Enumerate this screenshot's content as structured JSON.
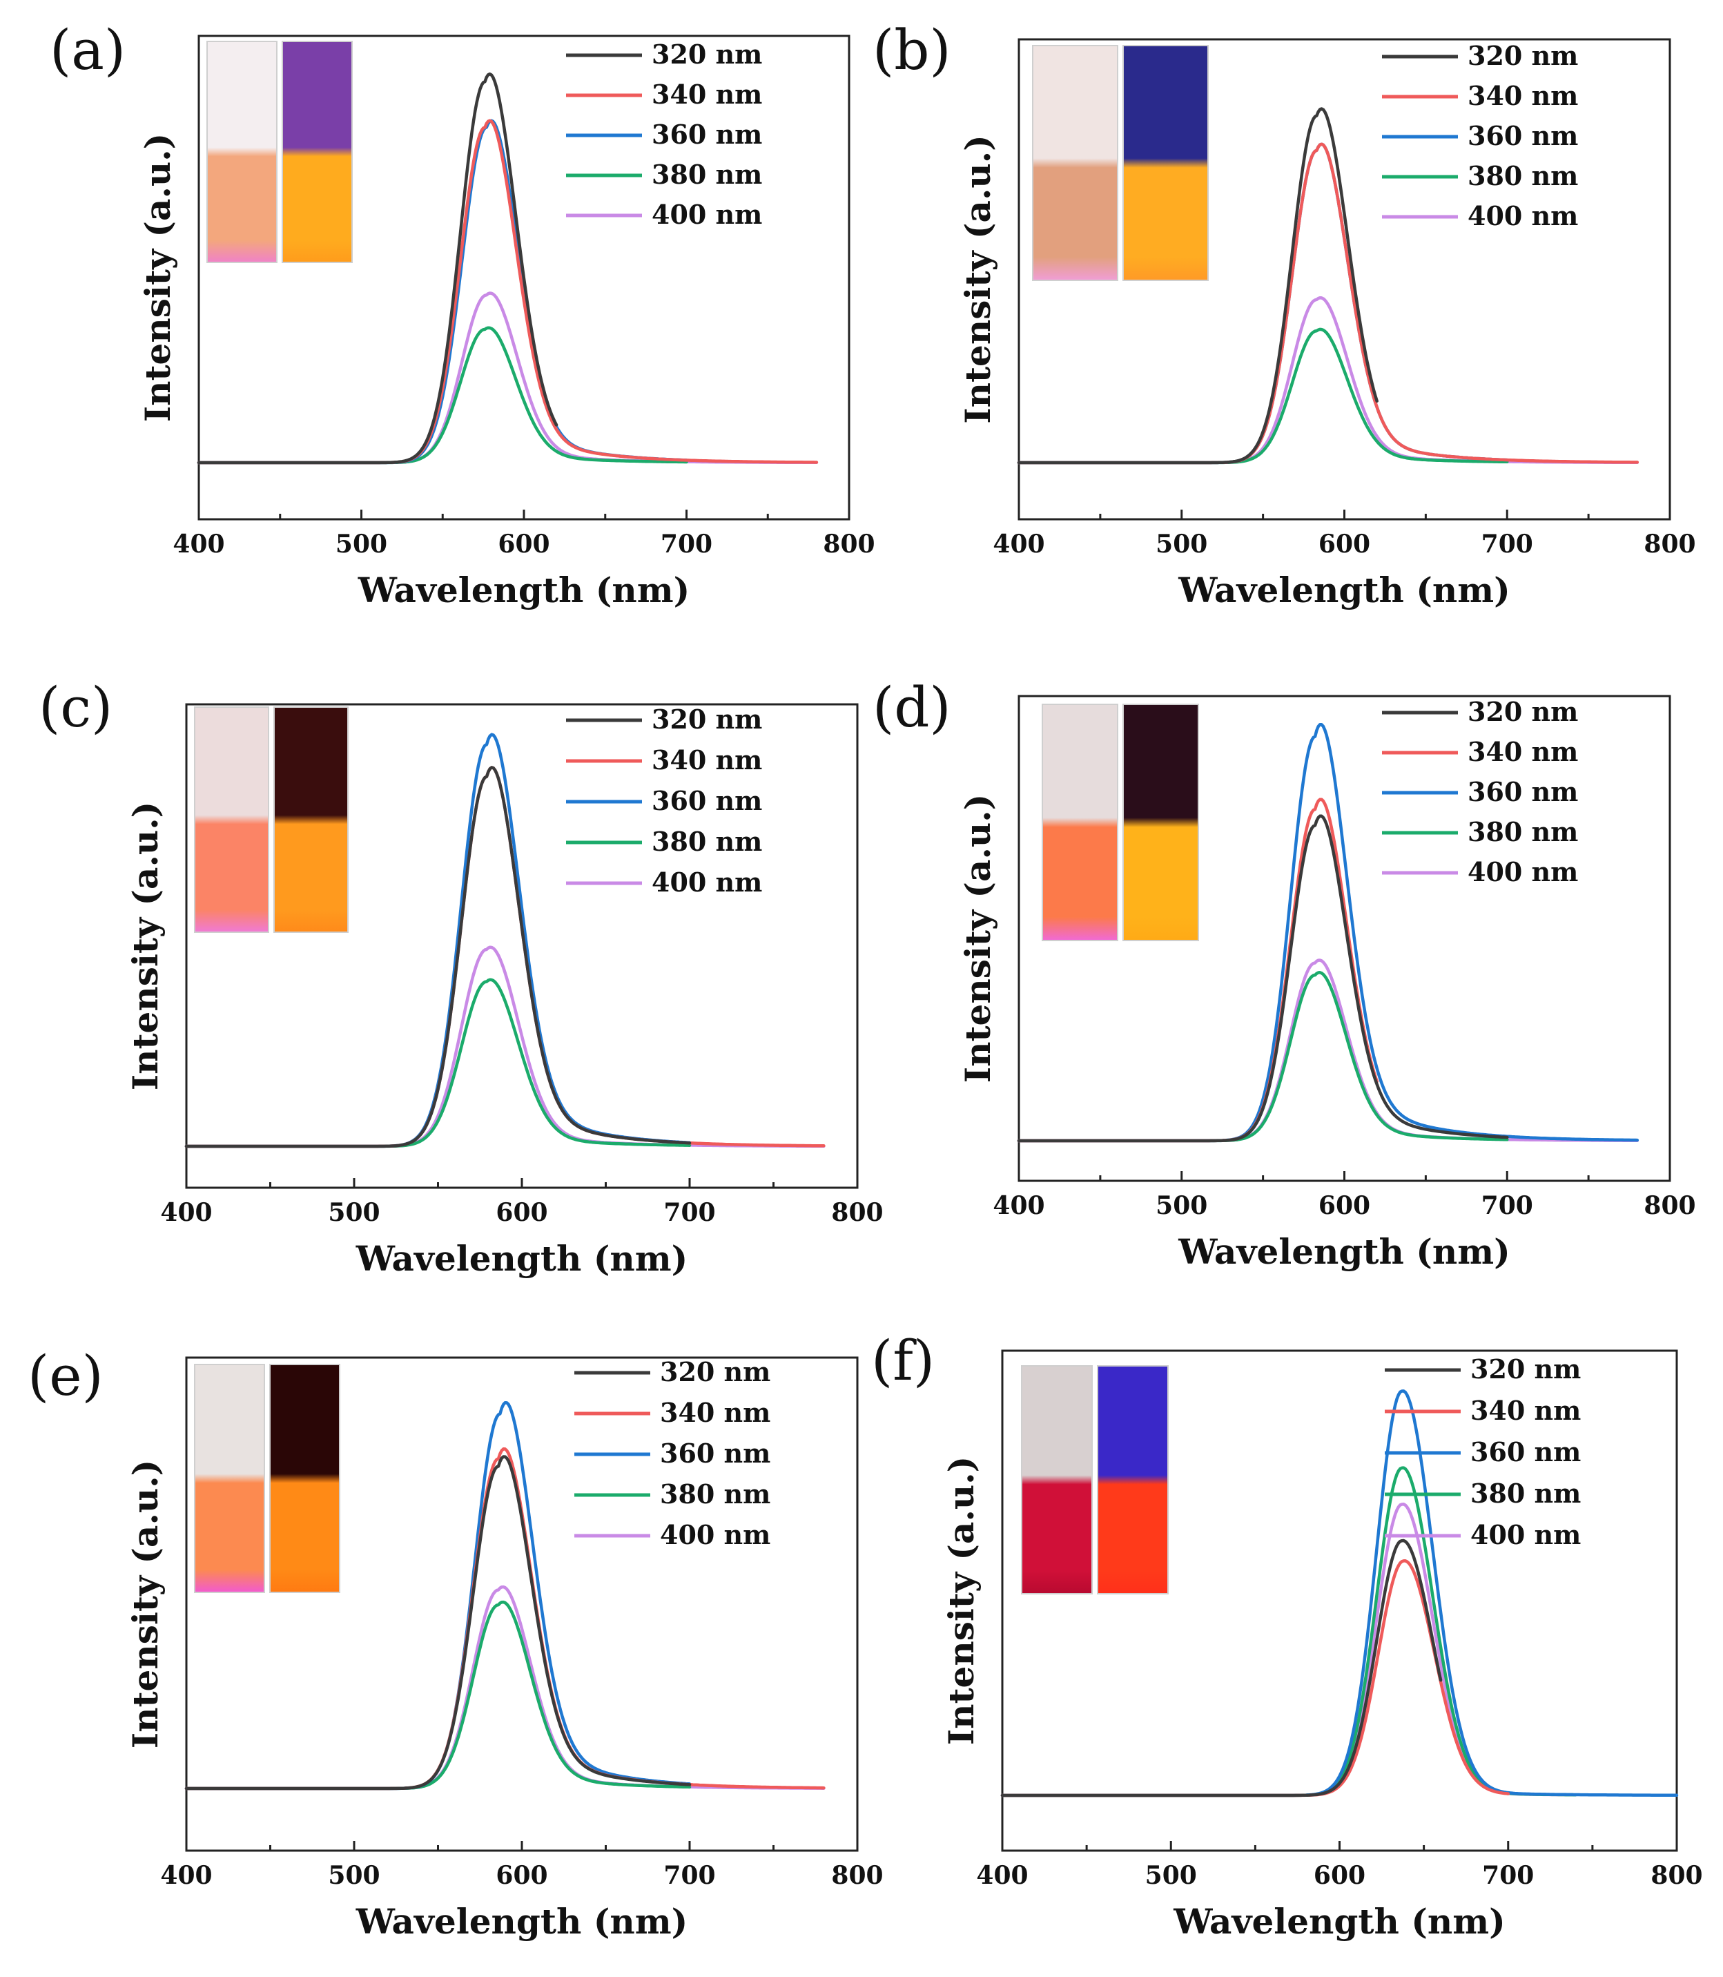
{
  "figure": {
    "series_colors": {
      "320 nm": "#3a3a3a",
      "340 nm": "#ef5a5a",
      "360 nm": "#1f78d1",
      "380 nm": "#1bab6b",
      "400 nm": "#c98ae6"
    }
  },
  "chart_data": [
    {
      "panel": "(a)",
      "type": "line",
      "xlabel": "Wavelength (nm)",
      "ylabel": "Intensity (a.u.)",
      "xlim": [
        400,
        800
      ],
      "ylim": [
        0,
        1.12
      ],
      "xticks": [
        400,
        500,
        600,
        700,
        800
      ],
      "xtick_labels": [
        "400",
        "500",
        "600",
        "700",
        "800"
      ],
      "legend": [
        "320 nm",
        "340 nm",
        "360 nm",
        "380 nm",
        "400 nm"
      ],
      "inset": {
        "left_vial": [
          "#f4eef0",
          "#f3a77d",
          "#f082c8"
        ],
        "right_vial": [
          "#7a3fa8",
          "#ffab1e",
          "#ff9c1c"
        ]
      },
      "series": [
        {
          "name": "320 nm",
          "peak_nm": 576,
          "height": 1.0,
          "tail": 0.14,
          "end_nm": 620
        },
        {
          "name": "340 nm",
          "peak_nm": 576,
          "height": 0.88,
          "tail": 0.14,
          "end_nm": 780
        },
        {
          "name": "360 nm",
          "peak_nm": 577,
          "height": 0.88,
          "tail": 0.14,
          "end_nm": 700
        },
        {
          "name": "380 nm",
          "peak_nm": 576,
          "height": 0.35,
          "tail": 0.1,
          "end_nm": 700
        },
        {
          "name": "400 nm",
          "peak_nm": 577,
          "height": 0.44,
          "tail": 0.1,
          "end_nm": 780
        }
      ]
    },
    {
      "panel": "(b)",
      "type": "line",
      "xlabel": "Wavelength (nm)",
      "ylabel": "Intensity (a.u.)",
      "xlim": [
        400,
        800
      ],
      "ylim": [
        0,
        1.22
      ],
      "xticks": [
        400,
        500,
        600,
        700,
        800
      ],
      "xtick_labels": [
        "400",
        "500",
        "600",
        "700",
        "800"
      ],
      "legend": [
        "320 nm",
        "340 nm",
        "360 nm",
        "380 nm",
        "400 nm"
      ],
      "inset": {
        "left_vial": [
          "#f0e4e2",
          "#e2a07e",
          "#f09ed6"
        ],
        "right_vial": [
          "#2a2a8c",
          "#ffac22",
          "#ff9a26"
        ]
      },
      "series": [
        {
          "name": "320 nm",
          "peak_nm": 583,
          "height": 1.0,
          "tail": 0.14,
          "end_nm": 620
        },
        {
          "name": "340 nm",
          "peak_nm": 583,
          "height": 0.9,
          "tail": 0.14,
          "end_nm": 780
        },
        {
          "name": "360 nm",
          "peak_nm": 583,
          "height": 0.9,
          "tail": 0.14,
          "end_nm": 700
        },
        {
          "name": "380 nm",
          "peak_nm": 583,
          "height": 0.38,
          "tail": 0.1,
          "end_nm": 700
        },
        {
          "name": "400 nm",
          "peak_nm": 583,
          "height": 0.47,
          "tail": 0.1,
          "end_nm": 780
        }
      ]
    },
    {
      "panel": "(c)",
      "type": "line",
      "xlabel": "Wavelength (nm)",
      "ylabel": "Intensity (a.u.)",
      "xlim": [
        400,
        800
      ],
      "ylim": [
        0,
        1.1
      ],
      "xticks": [
        400,
        500,
        600,
        700,
        800
      ],
      "xtick_labels": [
        "400",
        "500",
        "600",
        "700",
        "800"
      ],
      "legend": [
        "320 nm",
        "340 nm",
        "360 nm",
        "380 nm",
        "400 nm"
      ],
      "inset": {
        "left_vial": [
          "#ecdcdc",
          "#fb8466",
          "#f07ad6"
        ],
        "right_vial": [
          "#3a0d0d",
          "#ff9a1e",
          "#ff8a1a"
        ]
      },
      "series": [
        {
          "name": "320 nm",
          "peak_nm": 579,
          "height": 0.92,
          "tail": 0.16,
          "end_nm": 700
        },
        {
          "name": "340 nm",
          "peak_nm": 579,
          "height": 0.92,
          "tail": 0.16,
          "end_nm": 780
        },
        {
          "name": "360 nm",
          "peak_nm": 579,
          "height": 1.0,
          "tail": 0.16,
          "end_nm": 700
        },
        {
          "name": "380 nm",
          "peak_nm": 579,
          "height": 0.41,
          "tail": 0.1,
          "end_nm": 700
        },
        {
          "name": "400 nm",
          "peak_nm": 579,
          "height": 0.49,
          "tail": 0.1,
          "end_nm": 780
        }
      ]
    },
    {
      "panel": "(d)",
      "type": "line",
      "xlabel": "Wavelength (nm)",
      "ylabel": "Intensity (a.u.)",
      "xlim": [
        400,
        800
      ],
      "ylim": [
        0,
        1.1
      ],
      "xticks": [
        400,
        500,
        600,
        700,
        800
      ],
      "xtick_labels": [
        "400",
        "500",
        "600",
        "700",
        "800"
      ],
      "legend": [
        "320 nm",
        "340 nm",
        "360 nm",
        "380 nm",
        "400 nm"
      ],
      "inset": {
        "left_vial": [
          "#e6dcdc",
          "#fc7a4a",
          "#f06ad6"
        ],
        "right_vial": [
          "#2a0d1a",
          "#ffb21a",
          "#ffaa16"
        ]
      },
      "series": [
        {
          "name": "320 nm",
          "peak_nm": 582,
          "height": 0.78,
          "tail": 0.18,
          "end_nm": 700
        },
        {
          "name": "340 nm",
          "peak_nm": 582,
          "height": 0.82,
          "tail": 0.18,
          "end_nm": 620
        },
        {
          "name": "360 nm",
          "peak_nm": 582,
          "height": 1.0,
          "tail": 0.18,
          "end_nm": 780
        },
        {
          "name": "380 nm",
          "peak_nm": 582,
          "height": 0.41,
          "tail": 0.12,
          "end_nm": 700
        },
        {
          "name": "400 nm",
          "peak_nm": 582,
          "height": 0.44,
          "tail": 0.12,
          "end_nm": 780
        }
      ]
    },
    {
      "panel": "(e)",
      "type": "line",
      "xlabel": "Wavelength (nm)",
      "ylabel": "Intensity (a.u.)",
      "xlim": [
        400,
        800
      ],
      "ylim": [
        0,
        1.15
      ],
      "xticks": [
        400,
        500,
        600,
        700,
        800
      ],
      "xtick_labels": [
        "400",
        "500",
        "600",
        "700",
        "800"
      ],
      "legend": [
        "320 nm",
        "340 nm",
        "360 nm",
        "380 nm",
        "400 nm"
      ],
      "inset": {
        "left_vial": [
          "#e8e2e0",
          "#fc8a50",
          "#f25ad0"
        ],
        "right_vial": [
          "#2a0606",
          "#ff8a16",
          "#ff7a12"
        ]
      },
      "series": [
        {
          "name": "320 nm",
          "peak_nm": 586,
          "height": 0.86,
          "tail": 0.18,
          "end_nm": 700
        },
        {
          "name": "340 nm",
          "peak_nm": 586,
          "height": 0.88,
          "tail": 0.18,
          "end_nm": 780
        },
        {
          "name": "360 nm",
          "peak_nm": 587,
          "height": 1.0,
          "tail": 0.18,
          "end_nm": 700
        },
        {
          "name": "380 nm",
          "peak_nm": 586,
          "height": 0.49,
          "tail": 0.12,
          "end_nm": 700
        },
        {
          "name": "400 nm",
          "peak_nm": 586,
          "height": 0.53,
          "tail": 0.12,
          "end_nm": 780
        }
      ]
    },
    {
      "panel": "(f)",
      "type": "line",
      "xlabel": "Wavelength (nm)",
      "ylabel": "Intensity (a.u.)",
      "xlim": [
        400,
        800
      ],
      "ylim": [
        0,
        1.1
      ],
      "xticks": [
        400,
        500,
        600,
        700,
        800
      ],
      "xtick_labels": [
        "400",
        "500",
        "600",
        "700",
        "800"
      ],
      "legend": [
        "320 nm",
        "340 nm",
        "360 nm",
        "380 nm",
        "400 nm"
      ],
      "inset": {
        "left_vial": [
          "#d8d0d0",
          "#d01038",
          "#b80a30"
        ],
        "right_vial": [
          "#3a28c8",
          "#ff3a1a",
          "#ff301a"
        ]
      },
      "series": [
        {
          "name": "320 nm",
          "peak_nm": 637,
          "height": 0.63,
          "tail": 0.02,
          "end_nm": 660
        },
        {
          "name": "340 nm",
          "peak_nm": 638,
          "height": 0.58,
          "tail": 0.02,
          "end_nm": 700
        },
        {
          "name": "360 nm",
          "peak_nm": 637,
          "height": 1.0,
          "tail": 0.02,
          "end_nm": 800
        },
        {
          "name": "380 nm",
          "peak_nm": 637,
          "height": 0.81,
          "tail": 0.02,
          "end_nm": 740
        },
        {
          "name": "400 nm",
          "peak_nm": 637,
          "height": 0.72,
          "tail": 0.02,
          "end_nm": 740
        }
      ]
    }
  ]
}
